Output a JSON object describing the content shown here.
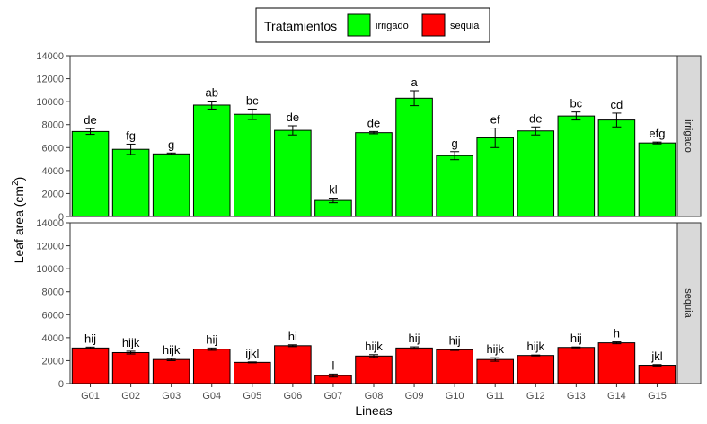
{
  "chart_data": {
    "type": "bar",
    "legend": {
      "title": "Tratamientos",
      "placement": "top",
      "entries": [
        {
          "label": "irrigado",
          "color": "#00ff00"
        },
        {
          "label": "sequia",
          "color": "#ff0000"
        }
      ]
    },
    "xlabel": "Lineas",
    "ylabel": "Leaf area (cm",
    "ylabel_superscript": "2",
    "ylabel_suffix": ")",
    "ylim": [
      0,
      14000
    ],
    "yticks": [
      "0",
      "2000",
      "4000",
      "6000",
      "8000",
      "10000",
      "12000",
      "14000"
    ],
    "categories": [
      "G01",
      "G02",
      "G03",
      "G04",
      "G05",
      "G06",
      "G07",
      "G08",
      "G09",
      "G10",
      "G11",
      "G12",
      "G13",
      "G14",
      "G15"
    ],
    "grid": false,
    "panels": [
      {
        "strip": "irrigado",
        "color": "#00ff00",
        "values": [
          7400,
          5850,
          5450,
          9700,
          8900,
          7500,
          1400,
          7300,
          10300,
          5300,
          6850,
          7450,
          8750,
          8400,
          6400
        ],
        "errors": [
          250,
          450,
          80,
          350,
          450,
          400,
          200,
          100,
          650,
          350,
          850,
          350,
          350,
          600,
          80
        ],
        "labels": [
          "de",
          "fg",
          "g",
          "ab",
          "bc",
          "de",
          "kl",
          "de",
          "a",
          "g",
          "ef",
          "de",
          "bc",
          "cd",
          "efg"
        ]
      },
      {
        "strip": "sequia",
        "color": "#ff0000",
        "values": [
          3100,
          2700,
          2100,
          3000,
          1850,
          3300,
          700,
          2400,
          3100,
          2950,
          2100,
          2450,
          3150,
          3550,
          1600
        ],
        "errors": [
          80,
          120,
          100,
          100,
          40,
          80,
          130,
          120,
          100,
          60,
          150,
          40,
          40,
          80,
          60
        ],
        "labels": [
          "hij",
          "hijk",
          "hijk",
          "hij",
          "ijkl",
          "hi",
          "l",
          "hijk",
          "hij",
          "hij",
          "hijk",
          "hijk",
          "hij",
          "h",
          "jkl"
        ]
      }
    ]
  }
}
